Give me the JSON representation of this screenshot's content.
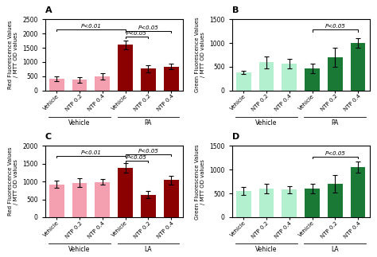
{
  "chart_data": [
    {
      "type": "bar",
      "title": "A",
      "categories": [
        "Vehicle",
        "NTP 0.2",
        "NTP 0.4",
        "Vehicle",
        "NTP 0.2",
        "NTP 0.4"
      ],
      "values": [
        420,
        370,
        490,
        1600,
        760,
        840
      ],
      "errors": [
        80,
        90,
        120,
        150,
        120,
        100
      ],
      "colors": [
        "#f4a0b0",
        "#f4a0b0",
        "#f4a0b0",
        "#8b0000",
        "#8b0000",
        "#8b0000"
      ],
      "ylabel": "Red Fluorescence Values\n/ MTT OD values",
      "ylim": [
        0,
        2500
      ],
      "yticks": [
        0,
        500,
        1000,
        1500,
        2000,
        2500
      ],
      "groups": [
        {
          "name": "Vehicle",
          "size": 3
        },
        {
          "name": "PA",
          "size": 3
        }
      ],
      "annotations": [
        {
          "text": "P<0.01",
          "from": 0,
          "to": 3,
          "y": 2150
        },
        {
          "text": "P<0.05",
          "from": 3,
          "to": 4,
          "y": 1900
        },
        {
          "text": "P<0.05",
          "from": 3,
          "to": 5,
          "y": 2100
        }
      ]
    },
    {
      "type": "bar",
      "title": "B",
      "categories": [
        "Vehicle",
        "NTP 0.2",
        "NTP 0.4",
        "Vehicle",
        "NTP 0.2",
        "NTP 0.4"
      ],
      "values": [
        380,
        590,
        560,
        460,
        700,
        1000
      ],
      "errors": [
        40,
        120,
        100,
        100,
        200,
        100
      ],
      "colors": [
        "#b2f0d0",
        "#b2f0d0",
        "#b2f0d0",
        "#1a7a35",
        "#1a7a35",
        "#1a7a35"
      ],
      "ylabel": "Green Fluorescence Values\n/ MTT OD values",
      "ylim": [
        0,
        1500
      ],
      "yticks": [
        0,
        500,
        1000,
        1500
      ],
      "groups": [
        {
          "name": "Vehicle",
          "size": 3
        },
        {
          "name": "PA",
          "size": 3
        }
      ],
      "annotations": [
        {
          "text": "P<0.05",
          "from": 3,
          "to": 5,
          "y": 1280
        }
      ]
    },
    {
      "type": "bar",
      "title": "C",
      "categories": [
        "Vehicle",
        "NTP 0.2",
        "NTP 0.4",
        "Vehicle",
        "NTP 0.2",
        "NTP 0.4"
      ],
      "values": [
        920,
        970,
        990,
        1380,
        630,
        1040
      ],
      "errors": [
        100,
        120,
        80,
        130,
        100,
        130
      ],
      "colors": [
        "#f4a0b0",
        "#f4a0b0",
        "#f4a0b0",
        "#8b0000",
        "#8b0000",
        "#8b0000"
      ],
      "ylabel": "Red Fluorescence Values\n/ MTT OD values",
      "ylim": [
        0,
        2000
      ],
      "yticks": [
        0,
        500,
        1000,
        1500,
        2000
      ],
      "groups": [
        {
          "name": "Vehicle",
          "size": 3
        },
        {
          "name": "LA",
          "size": 3
        }
      ],
      "annotations": [
        {
          "text": "P<0.01",
          "from": 0,
          "to": 3,
          "y": 1720
        },
        {
          "text": "P<0.05",
          "from": 3,
          "to": 4,
          "y": 1580
        },
        {
          "text": "P<0.05",
          "from": 3,
          "to": 5,
          "y": 1760
        }
      ]
    },
    {
      "type": "bar",
      "title": "D",
      "categories": [
        "Vehicle",
        "NTP 0.2",
        "NTP 0.4",
        "Vehicle",
        "NTP 0.2",
        "NTP 0.4"
      ],
      "values": [
        550,
        600,
        580,
        600,
        700,
        1050
      ],
      "errors": [
        80,
        100,
        80,
        100,
        180,
        120
      ],
      "colors": [
        "#b2f0d0",
        "#b2f0d0",
        "#b2f0d0",
        "#1a7a35",
        "#1a7a35",
        "#1a7a35"
      ],
      "ylabel": "Green Fluorescence Values\n/ MTT OD values",
      "ylim": [
        0,
        1500
      ],
      "yticks": [
        0,
        500,
        1000,
        1500
      ],
      "groups": [
        {
          "name": "Vehicle",
          "size": 3
        },
        {
          "name": "LA",
          "size": 3
        }
      ],
      "annotations": [
        {
          "text": "P<0.05",
          "from": 3,
          "to": 5,
          "y": 1280
        }
      ]
    }
  ]
}
